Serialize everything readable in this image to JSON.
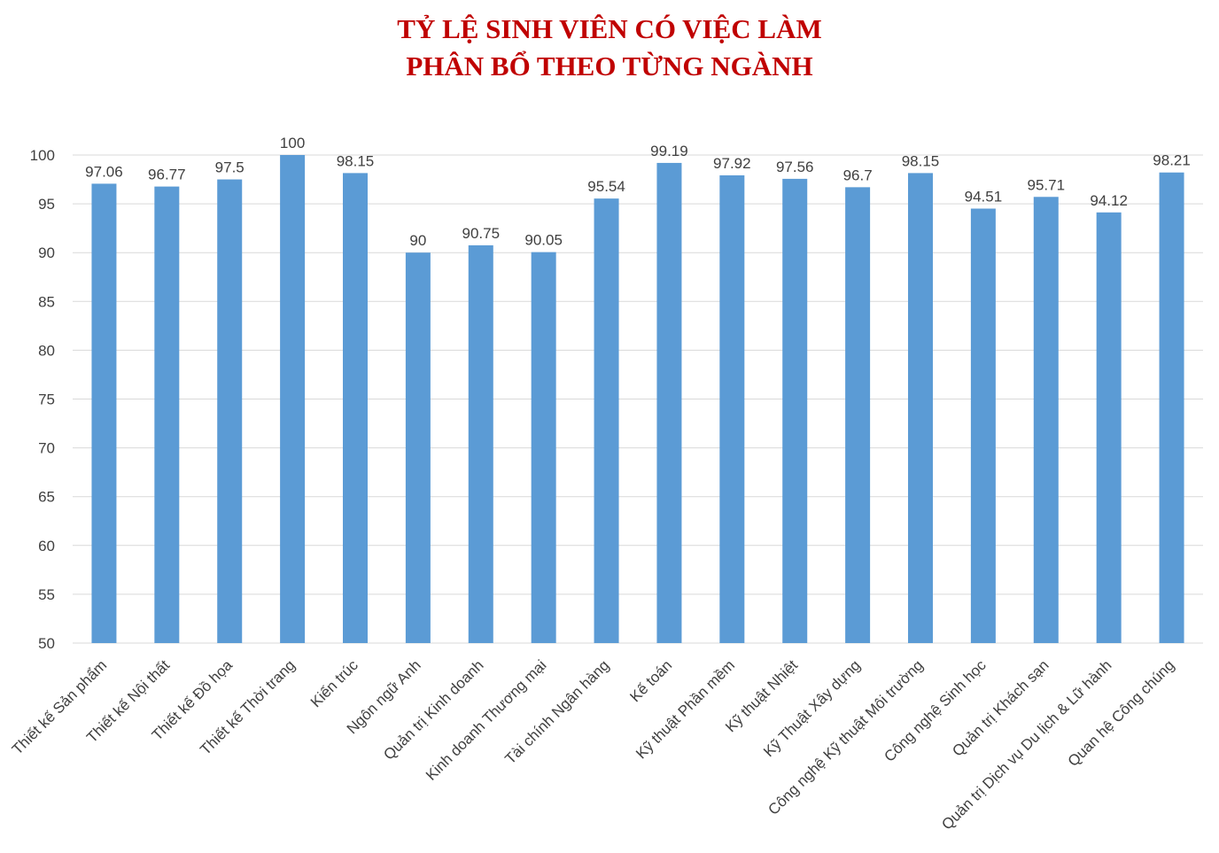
{
  "chart_data": {
    "type": "bar",
    "title": "TỶ LỆ SINH VIÊN CÓ VIỆC LÀM",
    "subtitle": "PHÂN BỔ THEO TỪNG NGÀNH",
    "xlabel": "",
    "ylabel": "",
    "ylim": [
      50,
      100
    ],
    "yticks": [
      50,
      55,
      60,
      65,
      70,
      75,
      80,
      85,
      90,
      95,
      100
    ],
    "grid": true,
    "legend": "none",
    "bar_color": "#5b9bd5",
    "title_color": "#c00000",
    "categories": [
      "Thiết kế Sản phẩm",
      "Thiết kế Nội thất",
      "Thiết kế Đồ họa",
      "Thiết kế Thời trang",
      "Kiến trúc",
      "Ngôn ngữ Anh",
      "Quản trị Kinh doanh",
      "Kinh doanh  Thương mại",
      "Tài chính Ngân hàng",
      "Kế toán",
      "Kỹ thuật Phần mềm",
      "Kỹ thuật Nhiệt",
      "Kỹ Thuật Xây dựng",
      "Công nghệ Kỹ thuật Môi trường",
      "Công nghệ Sinh học",
      "Quản trị Khách sạn",
      "Quản trị Dịch vụ Du lịch & Lữ hành",
      "Quan hệ Công chúng"
    ],
    "values": [
      97.06,
      96.77,
      97.5,
      100,
      98.15,
      90,
      90.75,
      90.05,
      95.54,
      99.19,
      97.92,
      97.56,
      96.7,
      98.15,
      94.51,
      95.71,
      94.12,
      98.21
    ]
  }
}
